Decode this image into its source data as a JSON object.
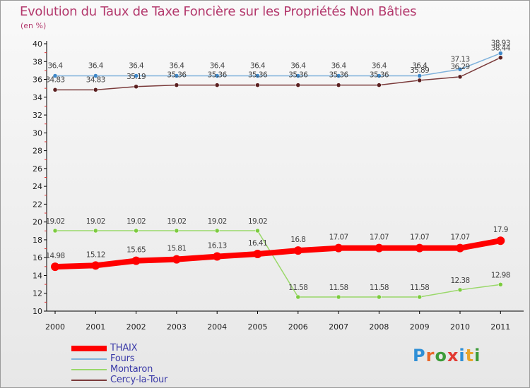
{
  "title": "Evolution du Taux de Taxe Foncière sur les Propriétés Non Bâties",
  "unit_label": "(en %)",
  "logo": {
    "text": "Proxiti",
    "letters": [
      {
        "ch": "P",
        "color": "#2f8fd6"
      },
      {
        "ch": "r",
        "color": "#e9672a"
      },
      {
        "ch": "o",
        "color": "#3d9c3a"
      },
      {
        "ch": "x",
        "color": "#e23a32"
      },
      {
        "ch": "i",
        "color": "#2f8fd6"
      },
      {
        "ch": "t",
        "color": "#e9a52a"
      },
      {
        "ch": "i",
        "color": "#3d9c3a"
      }
    ]
  },
  "chart_data": {
    "type": "line",
    "title": "Evolution du Taux de Taxe Foncière sur les Propriétés Non Bâties",
    "ylabel": "(en %)",
    "xlabel": "",
    "categories": [
      "2000",
      "2001",
      "2002",
      "2003",
      "2004",
      "2005",
      "2006",
      "2007",
      "2008",
      "2009",
      "2010",
      "2011"
    ],
    "ylim": [
      10,
      40
    ],
    "y_ticks": [
      "10",
      "12",
      "14",
      "16",
      "18",
      "20",
      "22",
      "24",
      "26",
      "28",
      "30",
      "32",
      "34",
      "36",
      "38",
      "40"
    ],
    "grid": false,
    "legend_position": "bottom-left",
    "series": [
      {
        "name": "THAIX",
        "color": "#ff0000",
        "emphasis": true,
        "values": [
          14.98,
          15.12,
          15.65,
          15.81,
          16.13,
          16.41,
          16.8,
          17.07,
          17.07,
          17.07,
          17.07,
          17.9
        ],
        "labels": [
          "14.98",
          "15.12",
          "15.65",
          "15.81",
          "16.13",
          "16.41",
          "16.8",
          "17.07",
          "17.07",
          "17.07",
          "17.07",
          "17.9"
        ]
      },
      {
        "name": "Fours",
        "color": "#7fb2dc",
        "marker_color": "#3f88c8",
        "values": [
          36.4,
          36.4,
          36.4,
          36.4,
          36.4,
          36.4,
          36.4,
          36.4,
          36.4,
          36.4,
          37.13,
          38.93
        ],
        "labels": [
          "36.4",
          "36.4",
          "36.4",
          "36.4",
          "36.4",
          "36.4",
          "36.4",
          "36.4",
          "36.4",
          "36.4",
          "37.13",
          "38.93"
        ]
      },
      {
        "name": "Montaron",
        "color": "#9ad86a",
        "marker_color": "#7ccb3f",
        "values": [
          19.02,
          19.02,
          19.02,
          19.02,
          19.02,
          19.02,
          11.58,
          11.58,
          11.58,
          11.58,
          12.38,
          12.98
        ],
        "labels": [
          "19.02",
          "19.02",
          "19.02",
          "19.02",
          "19.02",
          "19.02",
          "11.58",
          "11.58",
          "11.58",
          "11.58",
          "12.38",
          "12.98"
        ]
      },
      {
        "name": "Cercy-la-Tour",
        "color": "#7a3a3a",
        "marker_color": "#5a1f1f",
        "values": [
          34.83,
          34.83,
          35.19,
          35.36,
          35.36,
          35.36,
          35.36,
          35.36,
          35.36,
          35.89,
          36.29,
          38.44
        ],
        "labels": [
          "34.83",
          "34.83",
          "35.19",
          "35.36",
          "35.36",
          "35.36",
          "35.36",
          "35.36",
          "35.36",
          "35.89",
          "36.29",
          "38.44"
        ]
      }
    ]
  }
}
